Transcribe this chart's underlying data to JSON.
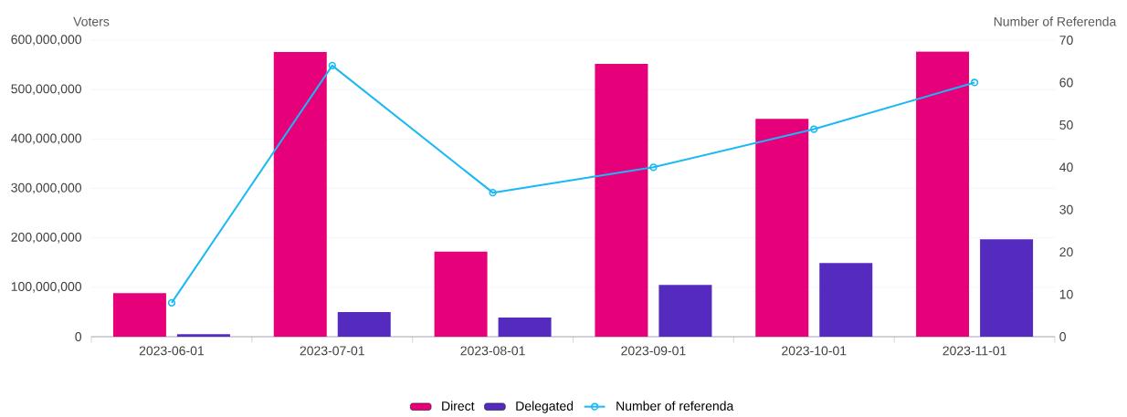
{
  "chart_data": {
    "type": "bar",
    "ylabel": "Voters",
    "y2label": "Number of Referenda",
    "categories": [
      "2023-06-01",
      "2023-07-01",
      "2023-08-01",
      "2023-09-01",
      "2023-10-01",
      "2023-11-01"
    ],
    "series": [
      {
        "name": "Direct",
        "color": "#e6007a",
        "values": [
          88000000,
          576000000,
          172000000,
          552000000,
          441000000,
          577000000
        ]
      },
      {
        "name": "Delegated",
        "color": "#552bbf",
        "values": [
          5000000,
          50000000,
          39000000,
          105000000,
          149000000,
          197000000
        ]
      },
      {
        "name": "Number of referenda",
        "type": "line",
        "axis": "y2",
        "color": "#1ab8f5",
        "marker": "circle",
        "line_style": "solid",
        "values": [
          8,
          64,
          34,
          40,
          49,
          60
        ]
      }
    ],
    "ylim": [
      0,
      600000000
    ],
    "yticks": [
      0,
      {
        "value": 100000000,
        "label": "100,000,000"
      },
      {
        "value": 200000000,
        "label": "200,000,000"
      },
      {
        "value": 300000000,
        "label": "300,000,000"
      },
      {
        "value": 400000000,
        "label": "400,000,000"
      },
      {
        "value": 500000000,
        "label": "500,000,000"
      },
      {
        "value": 600000000,
        "label": "600,000,000"
      }
    ],
    "y2lim": [
      0,
      70
    ],
    "y2ticks": [
      0,
      10,
      20,
      30,
      40,
      50,
      60,
      70
    ],
    "grid": "y",
    "legend": "bottom"
  }
}
